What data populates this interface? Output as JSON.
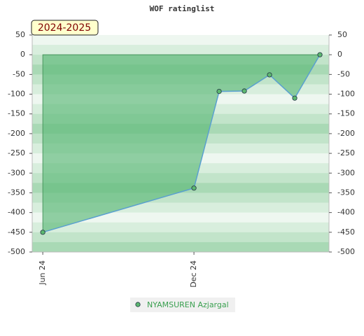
{
  "chart_data": {
    "type": "line",
    "title": "WOF ratinglist",
    "badge": "2024-2025",
    "x": [
      0,
      6,
      7,
      8,
      9,
      10,
      11
    ],
    "xlim": [
      -0.42,
      11.36
    ],
    "xticks": [
      {
        "value": 0,
        "label": "Jun 24"
      },
      {
        "value": 6,
        "label": "Dec 24"
      }
    ],
    "ylim": [
      -500,
      50
    ],
    "yticks": [
      50,
      0,
      -50,
      -100,
      -150,
      -200,
      -250,
      -300,
      -350,
      -400,
      -450,
      -500
    ],
    "series": [
      {
        "name": "NYAMSUREN Azjargal",
        "color": "#5aa0d0",
        "values": [
          -450,
          -338,
          -93,
          -92,
          -51,
          -110,
          0
        ]
      }
    ],
    "fill_color": "#5cb878",
    "marker_color": "#5cb870"
  }
}
